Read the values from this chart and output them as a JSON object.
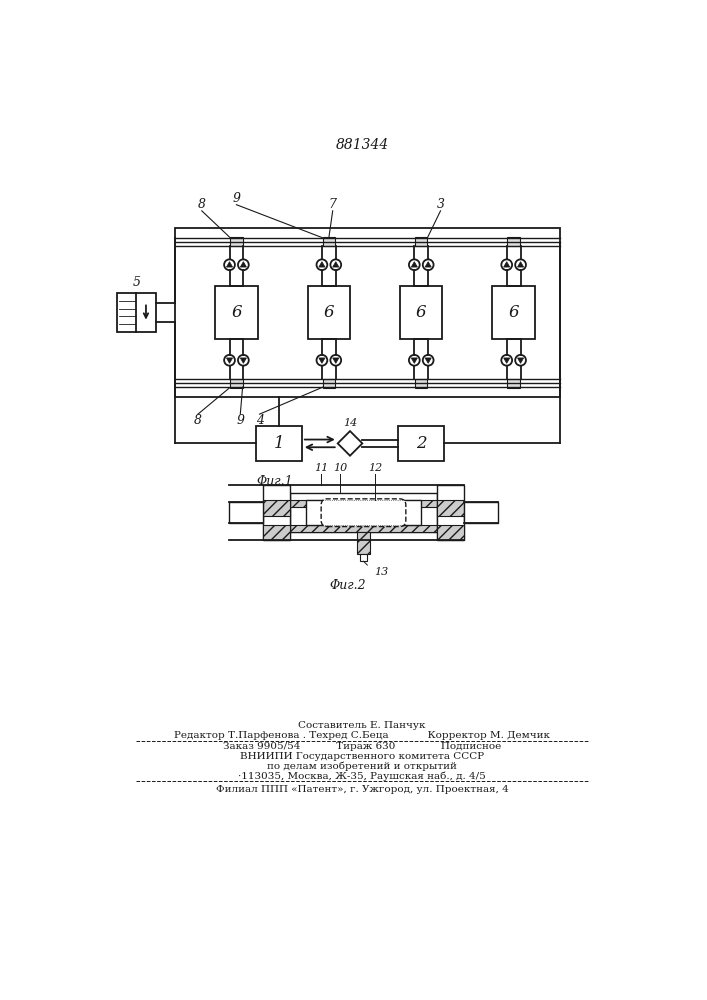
{
  "patent_number": "881344",
  "fig1_caption": "Φиг.1",
  "fig2_caption": "Φиг.2",
  "bg_color": "#ffffff",
  "line_color": "#1a1a1a",
  "label_8_top": "8",
  "label_9_top": "9",
  "label_7": "7",
  "label_3": "3",
  "label_5": "5",
  "label_6": "6",
  "label_8_bot": "8",
  "label_9_bot": "9",
  "label_4": "4",
  "label_14": "14",
  "label_1": "1",
  "label_2": "2",
  "label_11": "11",
  "label_10": "10",
  "label_12": "12",
  "label_13": "13",
  "footer_line1": "Составитель Е. Панчук",
  "footer_line2": "Редактор Т.Парфенова . Техред С.Беца            Корректор М. Демчик",
  "footer_line3": "Заказ 9905/54           Тираж 630              Подписное",
  "footer_line4": "ВНИИПИ Государственного комитета СССР",
  "footer_line5": "по делам изобретений и открытий",
  "footer_line6": "·113035, Москва, Ж-35, Раушская наб., д. 4/5",
  "footer_line7": "Филиал ППП «Патент», г. Ужгород, ул. Проектная, 4"
}
